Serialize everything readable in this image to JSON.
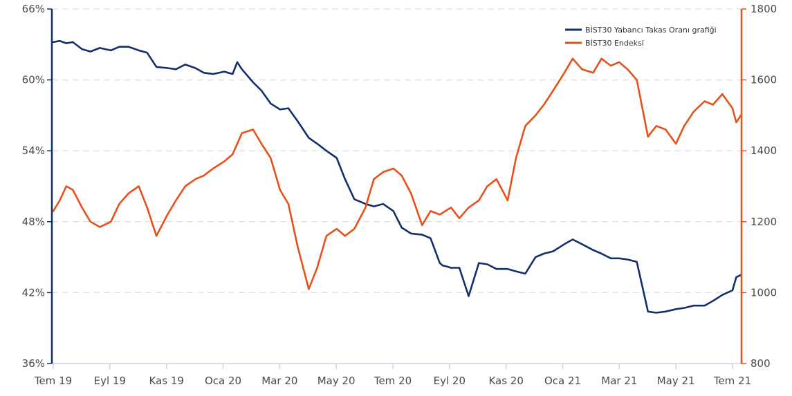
{
  "chart_data": {
    "type": "line",
    "x_ticks": [
      "Tem 19",
      "Eyl 19",
      "Kas 19",
      "Oca 20",
      "Mar 20",
      "May 20",
      "Tem 20",
      "Eyl 20",
      "Kas 20",
      "Oca 21",
      "Mar 21",
      "May 21",
      "Tem 21"
    ],
    "left_axis": {
      "ticks": [
        "36%",
        "42%",
        "48%",
        "54%",
        "60%",
        "66%"
      ],
      "min": 36,
      "max": 66,
      "color": "#132f6b"
    },
    "right_axis": {
      "ticks": [
        "800",
        "1000",
        "1200",
        "1400",
        "1600",
        "1800"
      ],
      "min": 800,
      "max": 1800,
      "color": "#e8501a"
    },
    "grid": true,
    "legend_position": "top-right",
    "series": [
      {
        "name": "BİST30 Yabancı Takas Oranı grafiği",
        "axis": "left",
        "color": "#132f6b",
        "x": [
          "2019-07-01",
          "2019-07-08",
          "2019-07-15",
          "2019-07-22",
          "2019-08-01",
          "2019-08-10",
          "2019-08-20",
          "2019-09-01",
          "2019-09-10",
          "2019-09-20",
          "2019-10-01",
          "2019-10-10",
          "2019-10-20",
          "2019-11-01",
          "2019-11-10",
          "2019-11-20",
          "2019-12-01",
          "2019-12-10",
          "2019-12-20",
          "2020-01-01",
          "2020-01-10",
          "2020-01-15",
          "2020-01-20",
          "2020-02-01",
          "2020-02-10",
          "2020-02-20",
          "2020-03-01",
          "2020-03-10",
          "2020-03-20",
          "2020-04-01",
          "2020-04-10",
          "2020-04-20",
          "2020-05-01",
          "2020-05-10",
          "2020-05-20",
          "2020-06-01",
          "2020-06-10",
          "2020-06-20",
          "2020-07-01",
          "2020-07-10",
          "2020-07-20",
          "2020-08-01",
          "2020-08-10",
          "2020-08-20",
          "2020-08-23",
          "2020-08-28",
          "2020-09-01",
          "2020-09-10",
          "2020-09-20",
          "2020-10-01",
          "2020-10-10",
          "2020-10-20",
          "2020-11-01",
          "2020-11-10",
          "2020-11-20",
          "2020-12-01",
          "2020-12-10",
          "2020-12-20",
          "2021-01-01",
          "2021-01-10",
          "2021-01-20",
          "2021-02-01",
          "2021-02-10",
          "2021-02-20",
          "2021-03-01",
          "2021-03-10",
          "2021-03-20",
          "2021-04-01",
          "2021-04-10",
          "2021-04-20",
          "2021-05-01",
          "2021-05-10",
          "2021-05-20",
          "2021-06-01",
          "2021-06-10",
          "2021-06-20",
          "2021-07-01",
          "2021-07-05",
          "2021-07-10"
        ],
        "values": [
          63.2,
          63.3,
          63.1,
          63.2,
          62.6,
          62.4,
          62.7,
          62.5,
          62.8,
          62.8,
          62.5,
          62.3,
          61.1,
          61.0,
          60.9,
          61.3,
          61.0,
          60.6,
          60.5,
          60.7,
          60.5,
          61.5,
          60.9,
          59.8,
          59.1,
          58.0,
          57.5,
          57.6,
          56.5,
          55.1,
          54.6,
          54.0,
          53.4,
          51.6,
          49.9,
          49.5,
          49.3,
          49.5,
          48.9,
          47.5,
          47.0,
          46.9,
          46.6,
          44.5,
          44.3,
          44.2,
          44.1,
          44.1,
          41.7,
          44.5,
          44.4,
          44.0,
          44.0,
          43.8,
          43.6,
          45.0,
          45.3,
          45.5,
          46.1,
          46.5,
          46.1,
          45.6,
          45.3,
          44.9,
          44.9,
          44.8,
          44.6,
          40.4,
          40.3,
          40.4,
          40.6,
          40.7,
          40.9,
          40.9,
          41.3,
          41.8,
          42.2,
          43.3,
          43.5
        ]
      },
      {
        "name": "BİST30 Endeksi",
        "axis": "right",
        "color": "#e8501a",
        "x": [
          "2019-07-01",
          "2019-07-08",
          "2019-07-15",
          "2019-07-22",
          "2019-08-01",
          "2019-08-10",
          "2019-08-20",
          "2019-09-01",
          "2019-09-10",
          "2019-09-20",
          "2019-10-01",
          "2019-10-10",
          "2019-10-20",
          "2019-11-01",
          "2019-11-10",
          "2019-11-20",
          "2019-12-01",
          "2019-12-10",
          "2019-12-20",
          "2020-01-01",
          "2020-01-10",
          "2020-01-20",
          "2020-02-01",
          "2020-02-10",
          "2020-02-20",
          "2020-03-01",
          "2020-03-10",
          "2020-03-20",
          "2020-04-01",
          "2020-04-10",
          "2020-04-20",
          "2020-05-01",
          "2020-05-10",
          "2020-05-20",
          "2020-06-01",
          "2020-06-10",
          "2020-06-20",
          "2020-07-01",
          "2020-07-10",
          "2020-07-20",
          "2020-08-01",
          "2020-08-10",
          "2020-08-20",
          "2020-09-01",
          "2020-09-10",
          "2020-09-20",
          "2020-10-01",
          "2020-10-10",
          "2020-10-20",
          "2020-11-01",
          "2020-11-10",
          "2020-11-20",
          "2020-12-01",
          "2020-12-10",
          "2020-12-20",
          "2021-01-01",
          "2021-01-10",
          "2021-01-20",
          "2021-02-01",
          "2021-02-10",
          "2021-02-20",
          "2021-03-01",
          "2021-03-10",
          "2021-03-20",
          "2021-04-01",
          "2021-04-10",
          "2021-04-20",
          "2021-05-01",
          "2021-05-10",
          "2021-05-20",
          "2021-06-01",
          "2021-06-10",
          "2021-06-20",
          "2021-07-01",
          "2021-07-05",
          "2021-07-10"
        ],
        "values": [
          1230,
          1260,
          1300,
          1290,
          1240,
          1200,
          1185,
          1200,
          1250,
          1280,
          1300,
          1240,
          1160,
          1220,
          1260,
          1300,
          1320,
          1330,
          1350,
          1370,
          1390,
          1450,
          1460,
          1420,
          1380,
          1290,
          1250,
          1130,
          1010,
          1070,
          1160,
          1180,
          1160,
          1180,
          1240,
          1320,
          1340,
          1350,
          1330,
          1280,
          1190,
          1230,
          1220,
          1240,
          1210,
          1240,
          1260,
          1300,
          1320,
          1260,
          1380,
          1470,
          1500,
          1530,
          1570,
          1620,
          1660,
          1630,
          1620,
          1660,
          1640,
          1650,
          1630,
          1600,
          1440,
          1470,
          1460,
          1420,
          1470,
          1510,
          1540,
          1530,
          1560,
          1520,
          1480,
          1500
        ]
      }
    ]
  }
}
